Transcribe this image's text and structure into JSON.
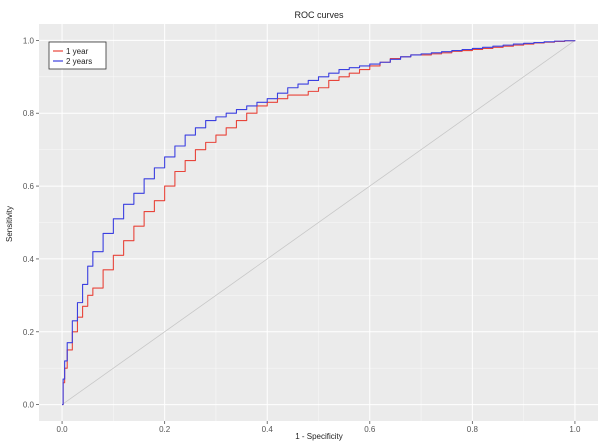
{
  "chart_data": {
    "type": "line",
    "title": "ROC curves",
    "xlabel": "1 - Specificity",
    "ylabel": "Sensitivity",
    "xlim": [
      0,
      1
    ],
    "ylim": [
      0,
      1
    ],
    "x_ticks": [
      0.0,
      0.2,
      0.4,
      0.6,
      0.8,
      1.0
    ],
    "y_ticks": [
      0.0,
      0.2,
      0.4,
      0.6,
      0.8,
      1.0
    ],
    "x_tick_labels": [
      "0.0",
      "0.2",
      "0.4",
      "0.6",
      "0.8",
      "1.0"
    ],
    "y_tick_labels": [
      "0.0",
      "0.2",
      "0.4",
      "0.6",
      "0.8",
      "1.0"
    ],
    "grid": true,
    "legend_position": "top-left",
    "colors": {
      "panel_background": "#ebebeb",
      "grid": "#ffffff",
      "reference_line": "#c8c8c8"
    },
    "reference_line": {
      "x": [
        0,
        1
      ],
      "y": [
        0,
        1
      ]
    },
    "series": [
      {
        "name": "1 year",
        "color": "#e8443a",
        "x": [
          0.0,
          0.002,
          0.005,
          0.01,
          0.02,
          0.03,
          0.04,
          0.05,
          0.06,
          0.08,
          0.1,
          0.12,
          0.14,
          0.16,
          0.18,
          0.2,
          0.22,
          0.24,
          0.26,
          0.28,
          0.3,
          0.32,
          0.34,
          0.36,
          0.38,
          0.4,
          0.42,
          0.44,
          0.46,
          0.48,
          0.5,
          0.52,
          0.54,
          0.56,
          0.58,
          0.6,
          0.62,
          0.64,
          0.66,
          0.68,
          0.7,
          0.72,
          0.74,
          0.76,
          0.78,
          0.8,
          0.82,
          0.84,
          0.86,
          0.88,
          0.9,
          0.92,
          0.94,
          0.96,
          0.98,
          1.0
        ],
        "y": [
          0.0,
          0.06,
          0.1,
          0.15,
          0.2,
          0.24,
          0.27,
          0.3,
          0.32,
          0.37,
          0.41,
          0.45,
          0.49,
          0.53,
          0.56,
          0.6,
          0.64,
          0.67,
          0.7,
          0.72,
          0.74,
          0.76,
          0.78,
          0.8,
          0.82,
          0.83,
          0.84,
          0.85,
          0.85,
          0.86,
          0.87,
          0.89,
          0.9,
          0.91,
          0.92,
          0.93,
          0.94,
          0.95,
          0.955,
          0.96,
          0.96,
          0.963,
          0.966,
          0.97,
          0.972,
          0.975,
          0.978,
          0.981,
          0.984,
          0.987,
          0.99,
          0.993,
          0.995,
          0.997,
          0.999,
          1.0
        ]
      },
      {
        "name": "2 years",
        "color": "#3b3fe0",
        "x": [
          0.0,
          0.002,
          0.005,
          0.01,
          0.02,
          0.03,
          0.04,
          0.05,
          0.06,
          0.08,
          0.1,
          0.12,
          0.14,
          0.16,
          0.18,
          0.2,
          0.22,
          0.24,
          0.26,
          0.28,
          0.3,
          0.32,
          0.34,
          0.36,
          0.38,
          0.4,
          0.42,
          0.44,
          0.46,
          0.48,
          0.5,
          0.52,
          0.54,
          0.56,
          0.58,
          0.6,
          0.62,
          0.64,
          0.66,
          0.68,
          0.7,
          0.72,
          0.74,
          0.76,
          0.78,
          0.8,
          0.82,
          0.84,
          0.86,
          0.88,
          0.9,
          0.92,
          0.94,
          0.96,
          0.98,
          1.0
        ],
        "y": [
          0.0,
          0.07,
          0.12,
          0.17,
          0.23,
          0.28,
          0.33,
          0.38,
          0.42,
          0.47,
          0.51,
          0.55,
          0.58,
          0.62,
          0.65,
          0.68,
          0.71,
          0.74,
          0.76,
          0.78,
          0.79,
          0.8,
          0.81,
          0.82,
          0.83,
          0.84,
          0.855,
          0.87,
          0.88,
          0.89,
          0.9,
          0.91,
          0.92,
          0.925,
          0.93,
          0.935,
          0.94,
          0.948,
          0.955,
          0.96,
          0.963,
          0.966,
          0.969,
          0.972,
          0.975,
          0.978,
          0.981,
          0.984,
          0.987,
          0.99,
          0.992,
          0.994,
          0.996,
          0.998,
          0.999,
          1.0
        ]
      }
    ]
  }
}
